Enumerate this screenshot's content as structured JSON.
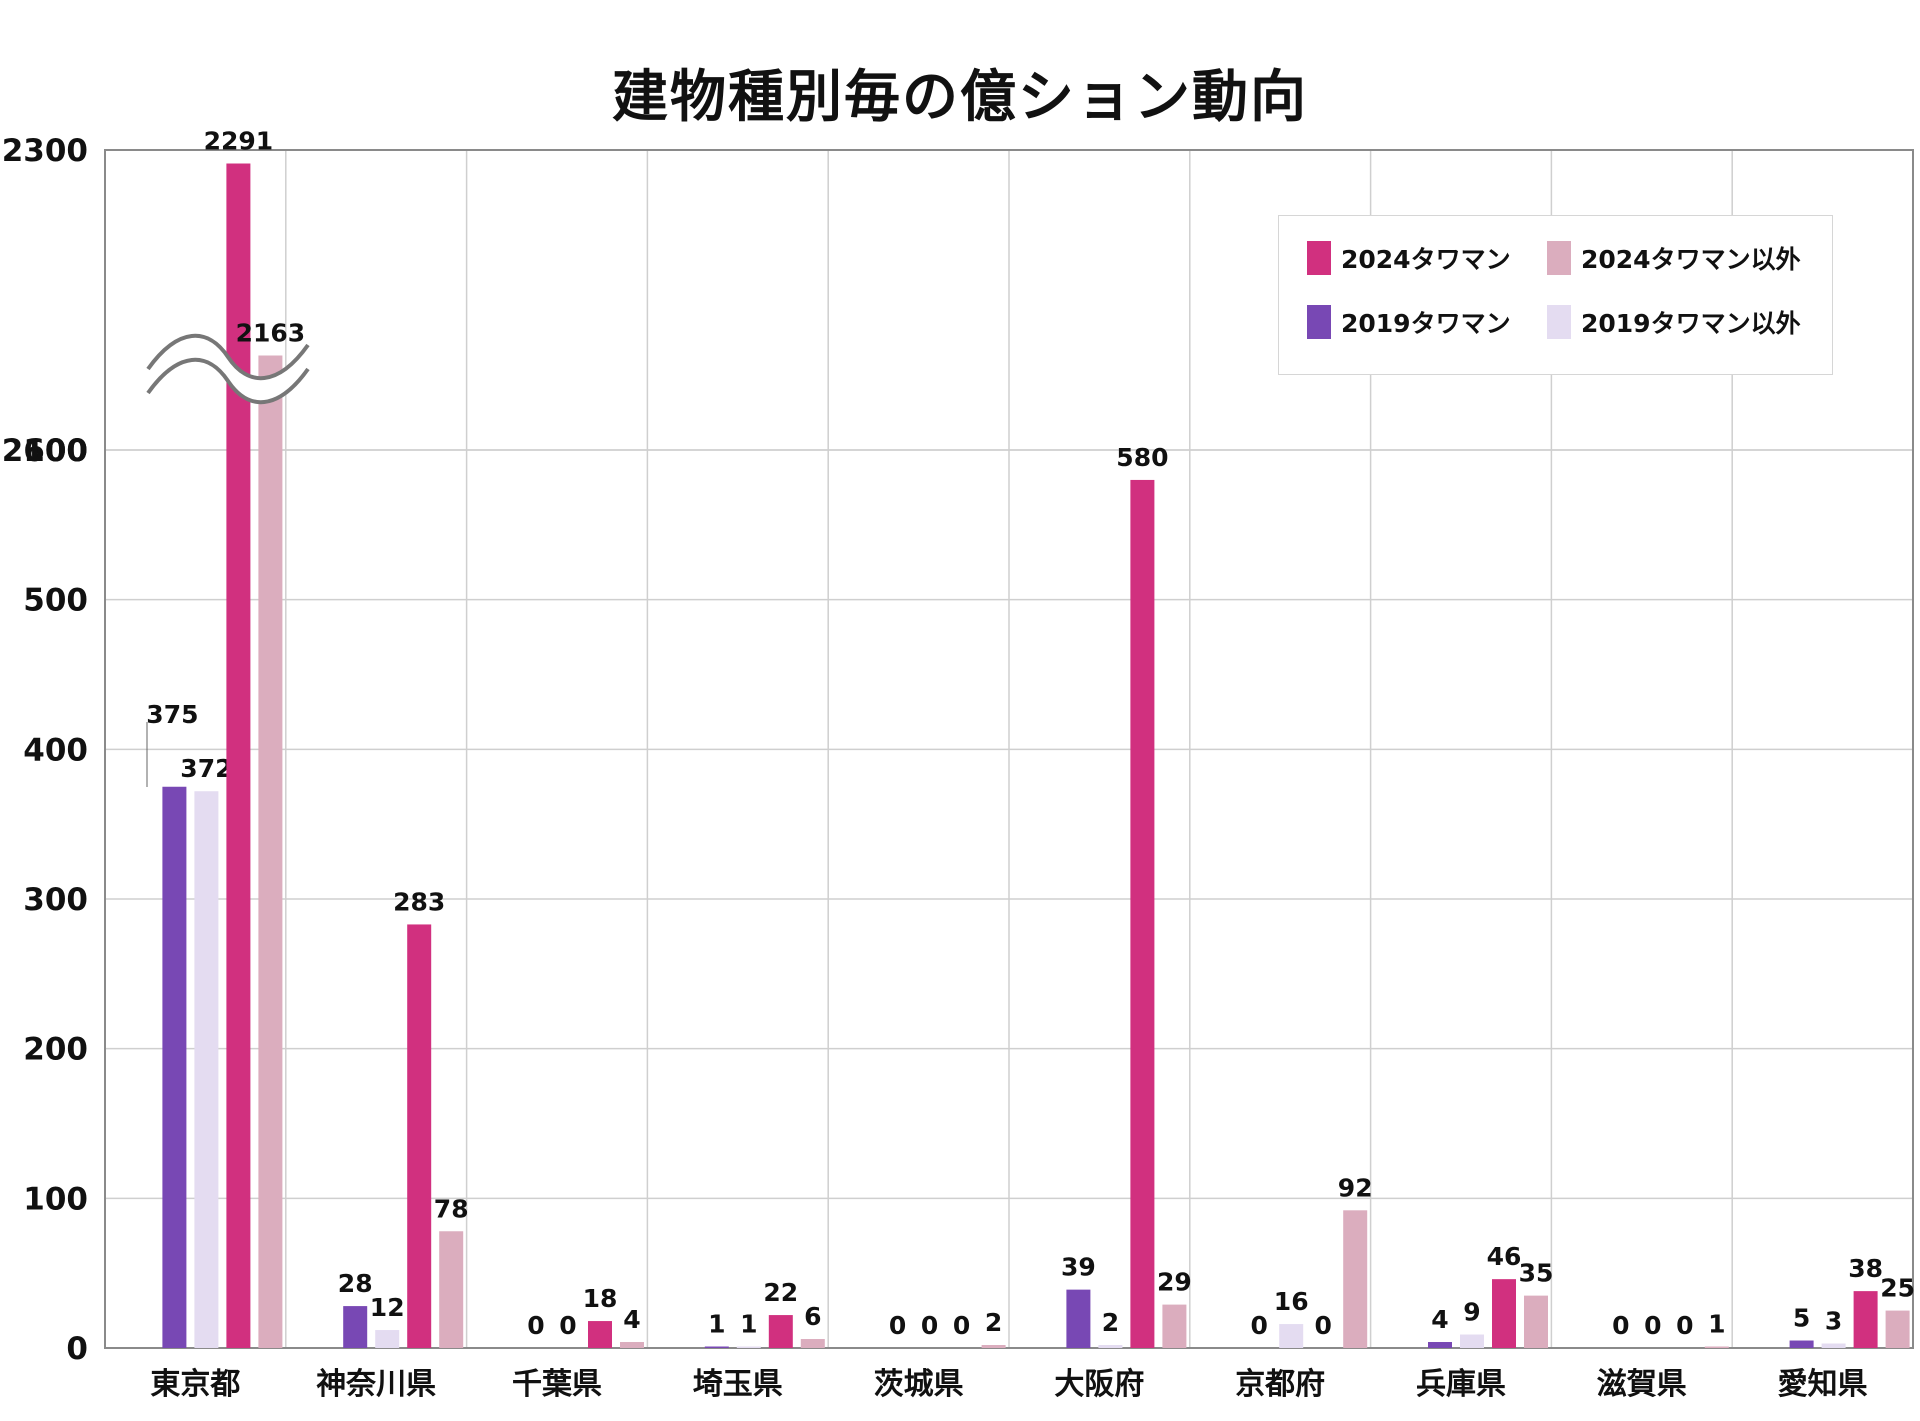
{
  "chart_data": {
    "type": "bar",
    "title": "建物種別毎の億ション動向",
    "categories": [
      "東京都",
      "神奈川県",
      "千葉県",
      "埼玉県",
      "茨城県",
      "大阪府",
      "京都府",
      "兵庫県",
      "滋賀県",
      "愛知県"
    ],
    "series": [
      {
        "name": "2019タワマン",
        "color": "#7848b4",
        "values": [
          375,
          28,
          0,
          1,
          0,
          39,
          0,
          4,
          0,
          5
        ]
      },
      {
        "name": "2019タワマン以外",
        "color": "#e4dcf1",
        "values": [
          372,
          12,
          0,
          1,
          0,
          2,
          16,
          9,
          0,
          3
        ]
      },
      {
        "name": "2024タワマン",
        "color": "#d1307f",
        "values": [
          2291,
          283,
          18,
          22,
          0,
          580,
          0,
          46,
          0,
          38
        ]
      },
      {
        "name": "2024タワマン以外",
        "color": "#dbadbe",
        "values": [
          2163,
          78,
          4,
          6,
          2,
          29,
          92,
          35,
          1,
          25
        ]
      }
    ],
    "yticks": [
      0,
      100,
      200,
      300,
      400,
      500,
      600,
      2100,
      2300
    ],
    "axis_break": [
      600,
      2100
    ],
    "ylim": [
      0,
      2300
    ],
    "grid": true,
    "legend_position": "top-right",
    "legend_order": [
      2,
      3,
      0,
      1
    ],
    "xlabel": "",
    "ylabel": ""
  }
}
